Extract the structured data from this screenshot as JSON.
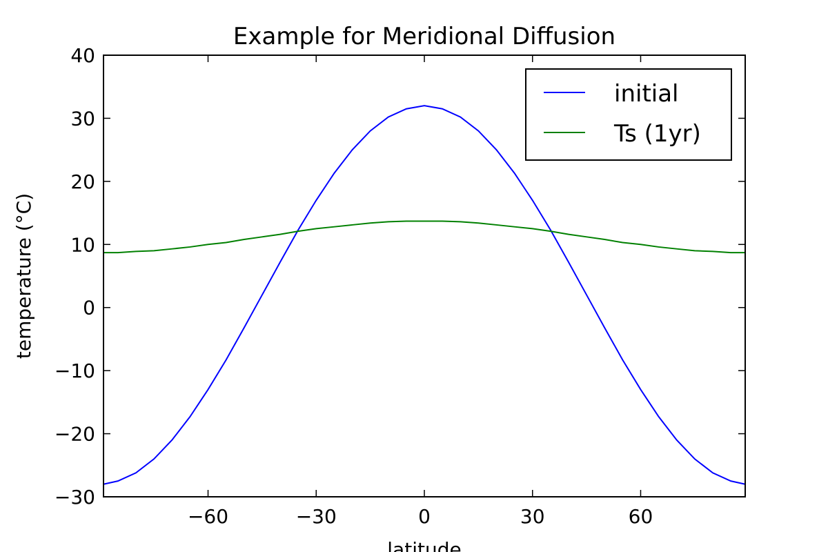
{
  "chart_data": {
    "type": "line",
    "title": "Example for Meridional Diffusion",
    "xlabel": "latitude",
    "ylabel": "temperature (°C)",
    "x": [
      -89,
      -85,
      -80,
      -75,
      -70,
      -65,
      -60,
      -55,
      -50,
      -45,
      -40,
      -35,
      -30,
      -25,
      -20,
      -15,
      -10,
      -5,
      0,
      5,
      10,
      15,
      20,
      25,
      30,
      35,
      40,
      45,
      50,
      55,
      60,
      65,
      70,
      75,
      80,
      85,
      89
    ],
    "series": [
      {
        "name": "initial",
        "color": "#0000ff",
        "values": [
          -28.0,
          -27.5,
          -26.2,
          -24.0,
          -21.0,
          -17.3,
          -13.0,
          -8.3,
          -3.2,
          2.0,
          7.2,
          12.3,
          17.0,
          21.3,
          25.0,
          28.0,
          30.2,
          31.5,
          32.0,
          31.5,
          30.2,
          28.0,
          25.0,
          21.3,
          17.0,
          12.3,
          7.2,
          2.0,
          -3.2,
          -8.3,
          -13.0,
          -17.3,
          -21.0,
          -24.0,
          -26.2,
          -27.5,
          -28.0
        ]
      },
      {
        "name": "Ts (1yr)",
        "color": "#008000",
        "values": [
          8.7,
          8.7,
          8.9,
          9.0,
          9.3,
          9.6,
          10.0,
          10.3,
          10.8,
          11.2,
          11.6,
          12.1,
          12.5,
          12.8,
          13.1,
          13.4,
          13.6,
          13.7,
          13.7,
          13.7,
          13.6,
          13.4,
          13.1,
          12.8,
          12.5,
          12.1,
          11.6,
          11.2,
          10.8,
          10.3,
          10.0,
          9.6,
          9.3,
          9.0,
          8.9,
          8.7,
          8.7
        ]
      }
    ],
    "xlim": [
      -89,
      89
    ],
    "xticks": [
      {
        "value": -60,
        "label": "−60"
      },
      {
        "value": -30,
        "label": "−30"
      },
      0,
      30,
      60
    ],
    "ylim": [
      -30,
      40
    ],
    "yticks": [
      {
        "value": -30,
        "label": "−30"
      },
      {
        "value": -20,
        "label": "−20"
      },
      {
        "value": -10,
        "label": "−10"
      },
      0,
      10,
      20,
      30,
      40
    ],
    "legend": "upper right",
    "grid": false
  }
}
